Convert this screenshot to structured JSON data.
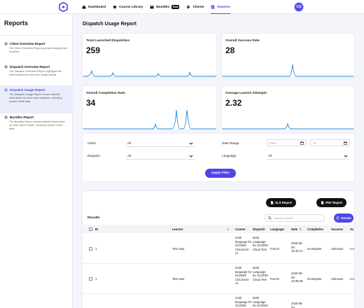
{
  "nav": {
    "items": [
      {
        "label": "Dashboard",
        "icon": "home-icon"
      },
      {
        "label": "Course Library",
        "icon": "graduation-cap-icon"
      },
      {
        "label": "Bundles",
        "icon": "box-icon",
        "badge": "Beta"
      },
      {
        "label": "Clients",
        "icon": "map-pin-icon"
      },
      {
        "label": "Reports",
        "icon": "report-icon",
        "active": true
      }
    ],
    "avatar_initials": "CQ",
    "accent": "#4f46e5"
  },
  "sidebar": {
    "title": "Reports",
    "items": [
      {
        "label": "Client Overview Report",
        "desc": "The Client Overview Report provides insights into licenses."
      },
      {
        "label": "Dispatch Overview Report",
        "desc": "The Dispatch Overview Report highlights the client dispatches and their usage details."
      },
      {
        "label": "Dispatch Usage Report",
        "desc": "The Dispatch Usage Report shows detailed information on each client dispatch, including course result data.",
        "active": true
      },
      {
        "label": "Bundles Report",
        "desc": "The Bundles Report shows detailed information on each client bundle, including course result data."
      }
    ]
  },
  "main": {
    "title": "Dispatch Usage Report",
    "cards": [
      {
        "title": "Total Launched Dispatches",
        "value": "259"
      },
      {
        "title": "Overall Success Rate",
        "value": "28"
      },
      {
        "title": "Overall Completion Rate",
        "value": "34"
      },
      {
        "title": "Average Launch Attempts",
        "value": "2.32"
      }
    ],
    "filters": {
      "client_label": "Client",
      "client_value": "All",
      "dispatch_label": "Dispatch",
      "dispatch_value": "All",
      "date_range_label": "Date Range",
      "from_placeholder": "From",
      "to_placeholder": "To",
      "language_label": "Language",
      "language_value": "All",
      "apply_label": "Apply Filter"
    },
    "results": {
      "xls_label": "XLS Report",
      "pdf_label": "PDF Report",
      "title": "Results",
      "search_placeholder": "Search Learner",
      "renew_label": "Renew",
      "columns": [
        "ID",
        "Learner",
        "Course",
        "Dispatch",
        "Language",
        "Date",
        "Completion",
        "Success",
        "Sc"
      ],
      "rows": [
        {
          "id": "1",
          "learner": "Test User",
          "course": "multi language for SCORM Cloud test - v1",
          "dispatch": "Multi Language for SCORM Cloud Test",
          "language": "French",
          "date": "2025-05-09 15:40:41",
          "completion": "Incomplete",
          "success": "Unknown",
          "score": "0.0"
        },
        {
          "id": "1",
          "learner": "Test User",
          "course": "multi language for SCORM Cloud test - v1",
          "dispatch": "Multi Language for SCORM Cloud Test",
          "language": "French",
          "date": "2025-05-09 15:39:48",
          "completion": "Incomplete",
          "success": "Unknown",
          "score": "0.0"
        },
        {
          "id": "",
          "learner": "",
          "course": "multi language for SCORM",
          "dispatch": "Multi Language for SCORM",
          "language": "",
          "date": "2025-05-09",
          "completion": "",
          "success": "",
          "score": ""
        }
      ]
    }
  }
}
